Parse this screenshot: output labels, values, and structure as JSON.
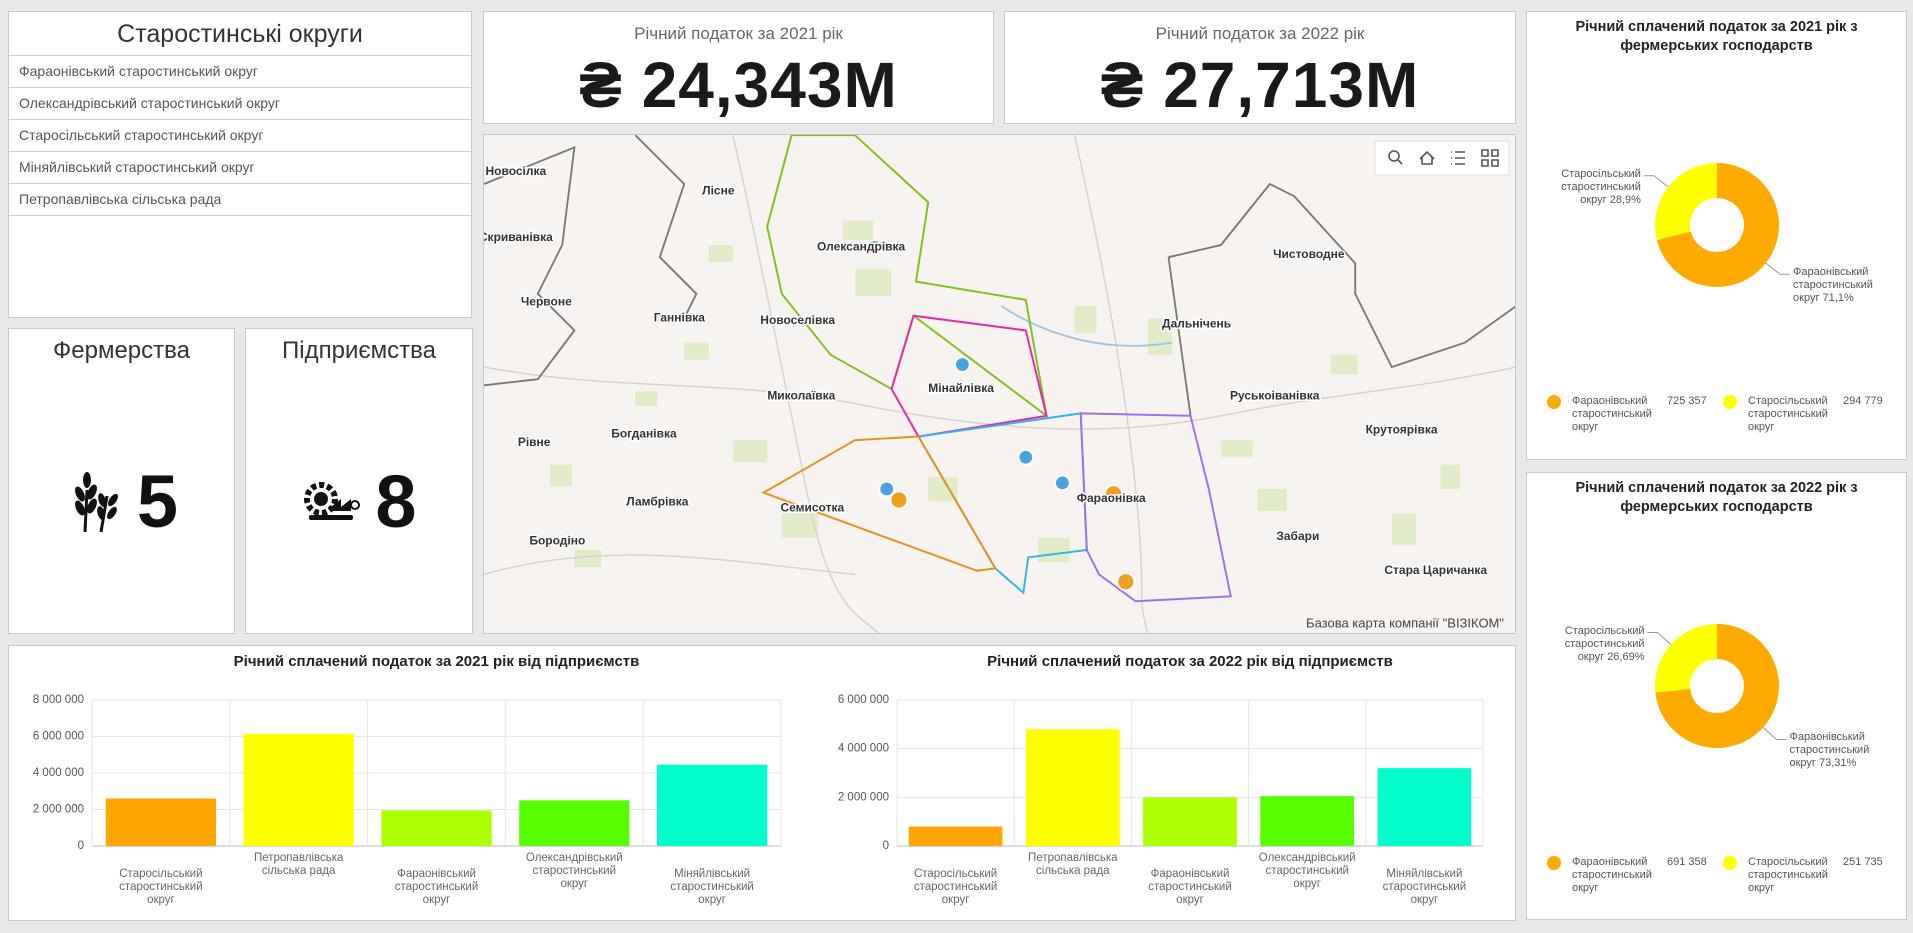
{
  "sidebar": {
    "title": "Старостинські округи",
    "items": [
      "Фараонівський старостинський округ",
      "Олександрівський старостинський округ",
      "Старосільський старостинський округ",
      "Міняйлівський старостинський округ",
      "Петропавлівська сільська рада"
    ]
  },
  "indicators": [
    {
      "title": "Річний податок за 2021 рік",
      "value": "₴ 24,343M"
    },
    {
      "title": "Річний податок за 2022 рік",
      "value": "₴ 27,713M"
    }
  ],
  "counters": [
    {
      "title": "Фермерства",
      "value": 5
    },
    {
      "title": "Підприємства",
      "value": 8
    }
  ],
  "map": {
    "places": [
      "Новосілка",
      "Лісне",
      "Скриванівка",
      "Червоне",
      "Ганнівка",
      "Олександрівка",
      "Новоселівка",
      "Мінайлівка",
      "Миколаївка",
      "Богданівка",
      "Рівне",
      "Семисотка",
      "Ламбрівка",
      "Бородіно",
      "Фараонівка",
      "Дальнічень",
      "Чистоводне",
      "Руськоіванівка",
      "Крутоярівка",
      "Забари",
      "Стара Царичанка"
    ],
    "attribution": "Базова карта компанії \"ВІЗІКОМ\""
  },
  "chart_data": [
    {
      "type": "bar",
      "title": "Річний сплачений податок за 2021 рік від підприємств",
      "categories": [
        "Старосільський старостинський округ",
        "Петропавлівська сільська рада",
        "Фараонівський старостинський округ",
        "Олександрівський старостинський округ",
        "Міняйлівський старостинський округ"
      ],
      "values": [
        2600000,
        6150000,
        1950000,
        2500000,
        4450000
      ],
      "colors": [
        "#ffa500",
        "#ffff00",
        "#aaff00",
        "#55ff00",
        "#00ffcc"
      ],
      "ylim": [
        0,
        8000000
      ],
      "yticks": [
        0,
        {
          "value": 2000000,
          "label": "2 000 000"
        },
        {
          "value": 4000000,
          "label": "4 000 000"
        },
        {
          "value": 6000000,
          "label": "6 000 000"
        },
        {
          "value": 8000000,
          "label": "8 000 000"
        }
      ],
      "grid": true
    },
    {
      "type": "bar",
      "title": "Річний сплачений податок за 2022 рік від підприємств",
      "categories": [
        "Старосільський старостинський округ",
        "Петропавлівська сільська рада",
        "Фараонівський старостинський округ",
        "Олександрівський старостинський округ",
        "Міняйлівський старостинський округ"
      ],
      "values": [
        800000,
        4800000,
        2000000,
        2050000,
        3200000
      ],
      "colors": [
        "#ffa500",
        "#ffff00",
        "#aaff00",
        "#55ff00",
        "#00ffcc"
      ],
      "ylim": [
        0,
        6000000
      ],
      "yticks": [
        0,
        {
          "value": 2000000,
          "label": "2 000 000"
        },
        {
          "value": 4000000,
          "label": "4 000 000"
        },
        {
          "value": 6000000,
          "label": "6 000 000"
        }
      ],
      "grid": true
    },
    {
      "type": "pie",
      "title": "Річний сплачений податок за 2021 рік з фермерських господарств",
      "categories": [
        "Фараонівський старостинський округ",
        "Старосільський старостинський округ"
      ],
      "values": [
        725357,
        294779
      ],
      "value_labels": [
        "725 357",
        "294 779"
      ],
      "percent_labels": [
        "71,1%",
        "28,9%"
      ],
      "colors": [
        "#ffaa00",
        "#ffff00"
      ]
    },
    {
      "type": "pie",
      "title": "Річний сплачений податок за 2022 рік з фермерських господарств",
      "categories": [
        "Фараонівський старостинський округ",
        "Старосільський старостинський округ"
      ],
      "values": [
        691358,
        251735
      ],
      "value_labels": [
        "691 358",
        "251 735"
      ],
      "percent_labels": [
        "73,31%",
        "26,69%"
      ],
      "colors": [
        "#ffaa00",
        "#ffff00"
      ]
    }
  ]
}
